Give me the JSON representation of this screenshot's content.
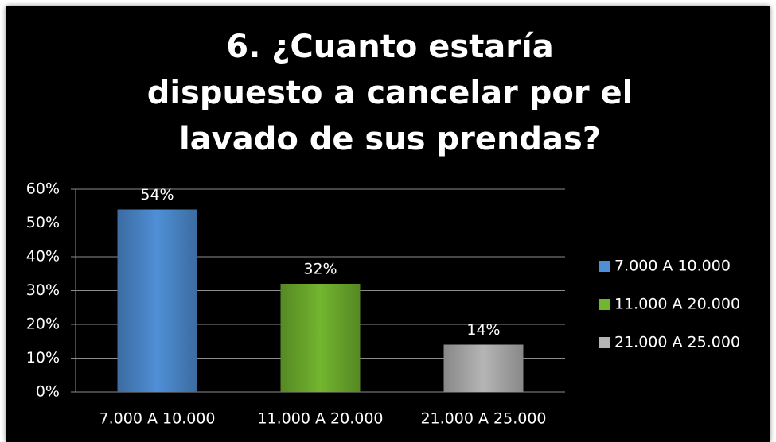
{
  "chart_data": {
    "type": "bar",
    "title": "6. ¿Cuanto estaría dispuesto a cancelar por el lavado de sus prendas?",
    "categories": [
      "7.000 A 10.000",
      "11.000 A  20.000",
      "21.000 A  25.000"
    ],
    "values": [
      54,
      32,
      14
    ],
    "value_labels": [
      "54%",
      "32%",
      "14%"
    ],
    "colors": [
      "#4f8fd6",
      "#72b52f",
      "#b5b5b5"
    ],
    "ylim": [
      0,
      60
    ],
    "yticks": [
      {
        "value": 0,
        "label": "0%"
      },
      {
        "value": 10,
        "label": "10%"
      },
      {
        "value": 20,
        "label": "20%"
      },
      {
        "value": 30,
        "label": "30%"
      },
      {
        "value": 40,
        "label": "40%"
      },
      {
        "value": 50,
        "label": "50%"
      },
      {
        "value": 60,
        "label": "60%"
      }
    ],
    "grid": true,
    "legend": "right"
  }
}
